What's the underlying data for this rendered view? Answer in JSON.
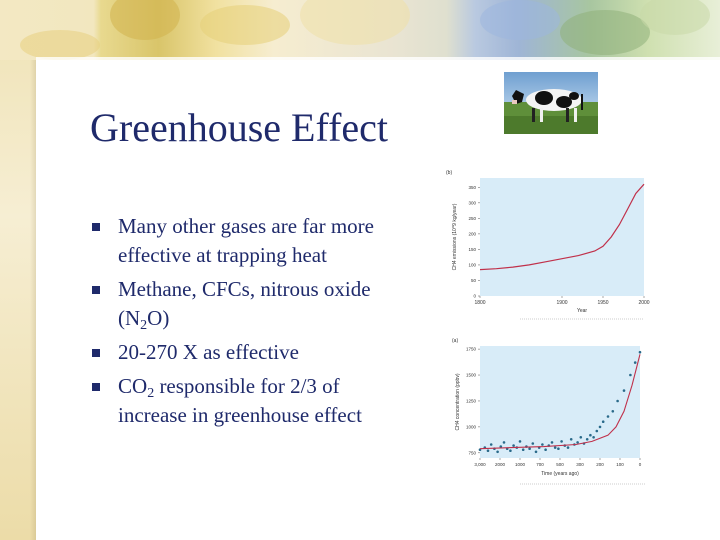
{
  "slide": {
    "title": "Greenhouse Effect",
    "bullets": [
      {
        "text": "Many other gases are far more effective at trapping heat"
      },
      {
        "text_before": "Methane, CFCs, nitrous oxide (N",
        "sub": "2",
        "text_after": "O)"
      },
      {
        "text": "20-270 X as effective"
      },
      {
        "text_before": "CO",
        "sub": "2",
        "text_after": " responsible for 2/3 of increase in greenhouse effect"
      }
    ],
    "image": {
      "icon": "cow-photo"
    }
  },
  "chart_data": [
    {
      "type": "line",
      "panel_label": "(b)",
      "ylabel": "CH4 emissions (10^9 kg/year)",
      "xlabel": "Year",
      "x_ticks": [
        "1800",
        "1900",
        "1950",
        "2000"
      ],
      "y_ticks": [
        "0",
        "50",
        "100",
        "150",
        "200",
        "250",
        "300",
        "350"
      ],
      "xlim": [
        1800,
        2000
      ],
      "ylim": [
        0,
        380
      ],
      "series": [
        {
          "x": [
            1800,
            1820,
            1840,
            1860,
            1880,
            1900,
            1920,
            1940,
            1950,
            1960,
            1970,
            1980,
            1990,
            2000
          ],
          "values": [
            85,
            88,
            93,
            100,
            110,
            120,
            130,
            145,
            160,
            190,
            230,
            280,
            330,
            360
          ],
          "color": "#c0304a"
        }
      ],
      "background": "#d8ecf8"
    },
    {
      "type": "scatter",
      "panel_label": "(a)",
      "ylabel": "CH4 concentration (ppbv)",
      "xlabel": "Time (years ago)",
      "x_ticks": [
        "3,000",
        "2000",
        "1000",
        "700",
        "500",
        "300",
        "200",
        "100",
        "0"
      ],
      "y_ticks": [
        "750",
        "1000",
        "1250",
        "1500",
        "1750"
      ],
      "ylim": [
        700,
        1780
      ],
      "series": [
        {
          "x": [
            0,
            0.03,
            0.05,
            0.07,
            0.09,
            0.11,
            0.13,
            0.15,
            0.17,
            0.19,
            0.21,
            0.23,
            0.25,
            0.27,
            0.29,
            0.31,
            0.33,
            0.35,
            0.37,
            0.39,
            0.41,
            0.43,
            0.45,
            0.47,
            0.49,
            0.51,
            0.53,
            0.55,
            0.57,
            0.59,
            0.61,
            0.63,
            0.65,
            0.67,
            0.69,
            0.71,
            0.73,
            0.75,
            0.77,
            0.8,
            0.83,
            0.86,
            0.9,
            0.94,
            0.97,
            1.0
          ],
          "values": [
            780,
            800,
            770,
            830,
            790,
            760,
            810,
            850,
            790,
            770,
            820,
            800,
            860,
            780,
            810,
            790,
            840,
            760,
            800,
            830,
            780,
            820,
            850,
            800,
            790,
            860,
            820,
            800,
            880,
            830,
            850,
            900,
            840,
            880,
            920,
            900,
            960,
            1000,
            1050,
            1100,
            1150,
            1250,
            1350,
            1500,
            1620,
            1720
          ],
          "color": "#2a6a8a"
        },
        {
          "x": [
            0,
            0.2,
            0.4,
            0.6,
            0.7,
            0.8,
            0.85,
            0.9,
            0.95,
            1.0
          ],
          "values": [
            790,
            800,
            810,
            830,
            860,
            920,
            1000,
            1150,
            1400,
            1700
          ],
          "color": "#c0304a"
        }
      ],
      "background": "#d8ecf8"
    }
  ]
}
